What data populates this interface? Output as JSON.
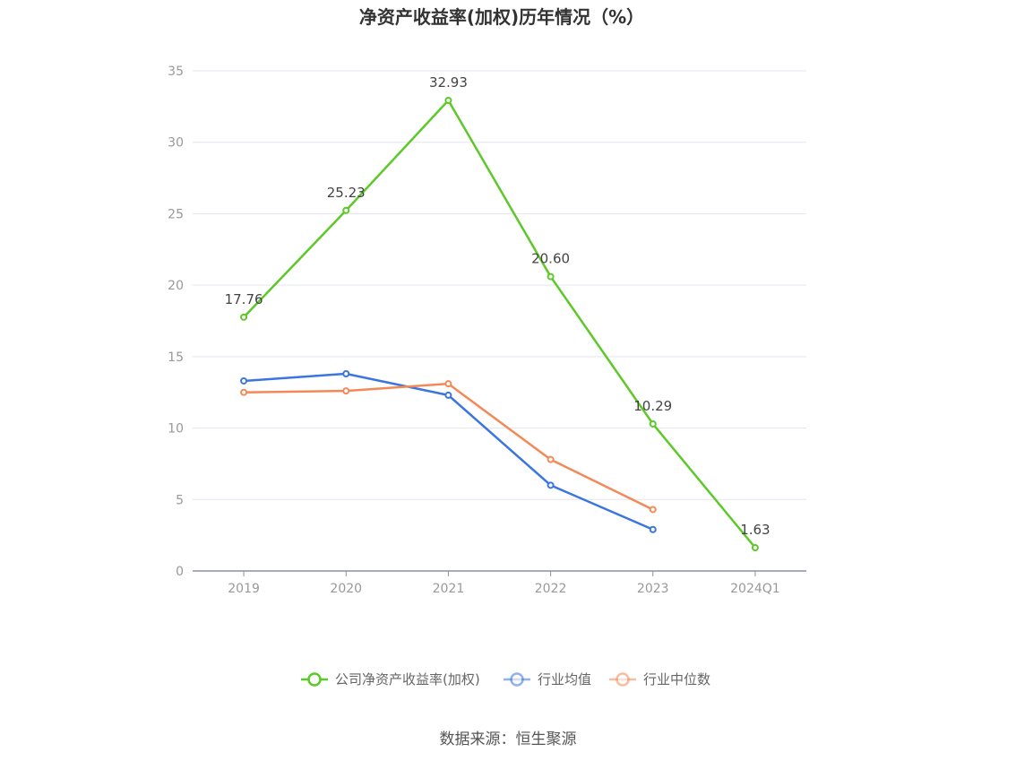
{
  "chart_data": {
    "type": "line",
    "title": "净资产收益率(加权)历年情况（%）",
    "categories": [
      "2019",
      "2020",
      "2021",
      "2022",
      "2023",
      "2024Q1"
    ],
    "ylim": [
      0,
      35
    ],
    "yticks": [
      "0",
      "5",
      "10",
      "15",
      "20",
      "25",
      "30",
      "35"
    ],
    "grid": true,
    "legend_position": "bottom",
    "series": [
      {
        "name": "公司净资产收益率(加权)",
        "color": "#5cc928",
        "values": [
          17.76,
          25.23,
          32.93,
          20.6,
          10.29,
          1.63
        ],
        "labels": [
          "17.76",
          "25.23",
          "32.93",
          "20.60",
          "10.29",
          "1.63"
        ]
      },
      {
        "name": "行业均值",
        "color": "#3b75e0",
        "values": [
          13.3,
          13.8,
          12.3,
          6.0,
          2.9,
          null
        ]
      },
      {
        "name": "行业中位数",
        "color": "#f38957",
        "values": [
          12.5,
          12.6,
          13.1,
          7.8,
          4.3,
          null
        ]
      }
    ]
  },
  "source": "数据来源：恒生聚源"
}
